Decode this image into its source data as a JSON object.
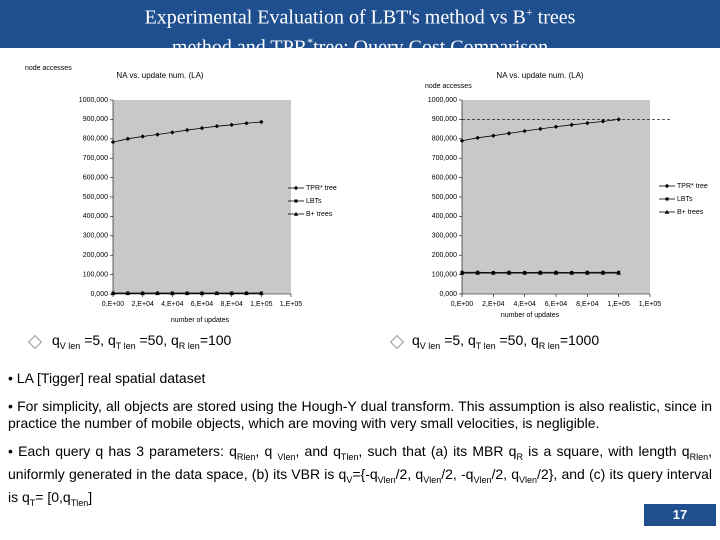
{
  "title": {
    "line1": [
      "Experimental Evaluation of LBT's method vs B",
      "+",
      " trees"
    ],
    "line2": [
      "method and TPR",
      "*",
      "tree: Query Cost Comparison"
    ]
  },
  "chart_data": [
    {
      "type": "line",
      "title": "NA vs. update num. (LA)",
      "y_label": "node accesses",
      "x_label": "number of updates",
      "x": [
        0,
        10000,
        20000,
        30000,
        40000,
        50000,
        60000,
        70000,
        80000,
        90000,
        100000
      ],
      "series": [
        {
          "name": "TPR* tree",
          "color": "#000000",
          "marker": "diamond",
          "values": [
            783000,
            800000,
            812000,
            822000,
            833000,
            845000,
            855000,
            865000,
            872000,
            880000,
            887000
          ]
        },
        {
          "name": "LBTs",
          "color": "#000000",
          "marker": "square",
          "values": [
            5000,
            5000,
            5000,
            5000,
            5000,
            5000,
            5000,
            5000,
            5000,
            5000,
            5000
          ]
        },
        {
          "name": "B+ trees",
          "color": "#000000",
          "marker": "triangle",
          "values": [
            3000,
            3000,
            3000,
            3000,
            3000,
            3000,
            3000,
            3000,
            3000,
            3000,
            3000
          ]
        }
      ],
      "xlim": [
        0,
        120000
      ],
      "xticks": [
        {
          "value": 0,
          "label": "0,E+00"
        },
        {
          "value": 20000,
          "label": "2,E+04"
        },
        {
          "value": 40000,
          "label": "4,E+04"
        },
        {
          "value": 60000,
          "label": "6,E+04"
        },
        {
          "value": 80000,
          "label": "8,E+04"
        },
        {
          "value": 100000,
          "label": "1,E+05"
        },
        {
          "value": 120000,
          "label": "1,E+05"
        }
      ],
      "ylim": [
        0,
        1000000
      ],
      "yticks": [
        {
          "value": 0,
          "label": "0,000"
        },
        {
          "value": 100000,
          "label": "100,000"
        },
        {
          "value": 200000,
          "label": "200,000"
        },
        {
          "value": 300000,
          "label": "300,000"
        },
        {
          "value": 400000,
          "label": "400,000"
        },
        {
          "value": 500000,
          "label": "500,000"
        },
        {
          "value": 600000,
          "label": "600,000"
        },
        {
          "value": 700000,
          "label": "700,000"
        },
        {
          "value": 800000,
          "label": "800,000"
        },
        {
          "value": 900000,
          "label": "900,000"
        },
        {
          "value": 1000000,
          "label": "1000,000"
        }
      ],
      "caption": [
        "q",
        "V len",
        " =5, q",
        "T len",
        " =50, q",
        "R len",
        "=100"
      ]
    },
    {
      "type": "line",
      "title": "NA vs. update num. (LA)",
      "y_label": "node accesses",
      "x_label": "number of updates",
      "x": [
        0,
        10000,
        20000,
        30000,
        40000,
        50000,
        60000,
        70000,
        80000,
        90000,
        100000
      ],
      "series": [
        {
          "name": "TPR* tree",
          "color": "#000000",
          "marker": "diamond",
          "values": [
            790000,
            805000,
            816000,
            828000,
            840000,
            851000,
            862000,
            872000,
            881000,
            890000,
            900000
          ]
        },
        {
          "name": "LBTs",
          "color": "#000000",
          "marker": "square",
          "values": [
            112000,
            112000,
            111000,
            112000,
            111000,
            112000,
            112000,
            111000,
            112000,
            112000,
            112000
          ]
        },
        {
          "name": "B+ trees",
          "color": "#000000",
          "marker": "triangle",
          "values": [
            108000,
            108000,
            108000,
            108000,
            108000,
            108000,
            108000,
            108000,
            108000,
            108000,
            108000
          ]
        }
      ],
      "hline": 900000,
      "xlim": [
        0,
        120000
      ],
      "xticks": [
        {
          "value": 0,
          "label": "0,E+00"
        },
        {
          "value": 20000,
          "label": "2,E+04"
        },
        {
          "value": 40000,
          "label": "4,E+04"
        },
        {
          "value": 60000,
          "label": "6,E+04"
        },
        {
          "value": 80000,
          "label": "8,E+04"
        },
        {
          "value": 100000,
          "label": "1,E+05"
        },
        {
          "value": 120000,
          "label": "1,E+05"
        }
      ],
      "ylim": [
        0,
        1000000
      ],
      "yticks": [
        {
          "value": 0,
          "label": "0,000"
        },
        {
          "value": 100000,
          "label": "100,000"
        },
        {
          "value": 200000,
          "label": "200,000"
        },
        {
          "value": 300000,
          "label": "300,000"
        },
        {
          "value": 400000,
          "label": "400,000"
        },
        {
          "value": 500000,
          "label": "500,000"
        },
        {
          "value": 600000,
          "label": "600,000"
        },
        {
          "value": 700000,
          "label": "700,000"
        },
        {
          "value": 800000,
          "label": "800,000"
        },
        {
          "value": 900000,
          "label": "900,000"
        },
        {
          "value": 1000000,
          "label": "1000,000"
        }
      ],
      "caption": [
        "q",
        "V len",
        " =5, q",
        "T len",
        " =50, q",
        "R len",
        "=1000"
      ]
    }
  ],
  "bullets": [
    [
      "• LA [Tigger] real spatial dataset"
    ],
    [
      "• For simplicity, all objects are stored using the Hough-Y dual transform. This assumption is also realistic, since in practice the number of mobile objects, which are moving with very small velocities, is negligible."
    ],
    [
      "• Each query q has 3 parameters: q",
      "Rlen",
      ", q ",
      "Vlen",
      ", and q",
      "Tlen",
      ", such that (a) its MBR q",
      "R",
      " is a square, with length q",
      "Rlen",
      ", uniformly generated in the data space, (b) its VBR is q",
      "V",
      "={-q",
      "Vlen",
      "/2, q",
      "Vlen",
      "/2, -q",
      "Vlen",
      "/2, q",
      "Vlen",
      "/2}, and (c) its query interval is q",
      "T",
      "= [0,q",
      "Tlen",
      "]"
    ]
  ],
  "page_number": "17"
}
